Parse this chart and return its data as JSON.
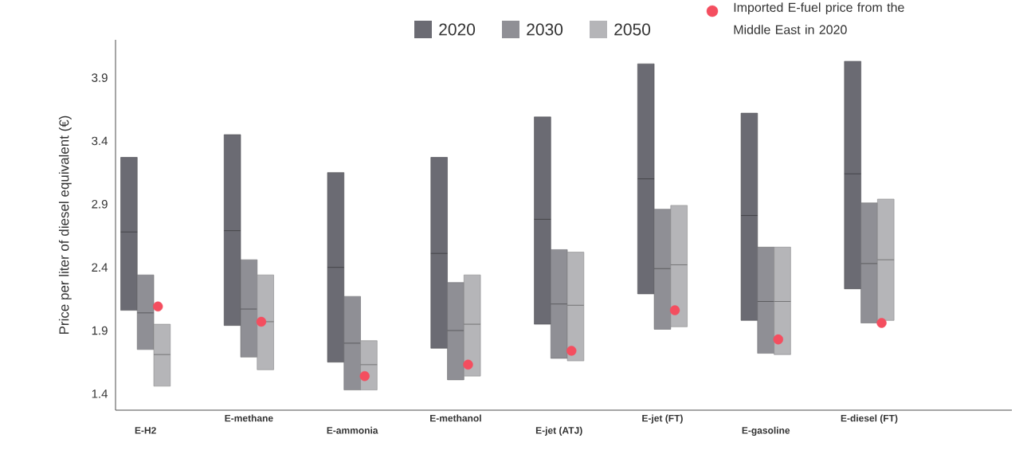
{
  "chart_data": {
    "type": "box",
    "ylabel": "Price per liter of diesel equivalent (€)",
    "categories": [
      "E-H2",
      "E-methane",
      "E-ammonia",
      "E-methanol",
      "E-jet (ATJ)",
      "E-jet (FT)",
      "E-gasoline",
      "E-diesel (FT)"
    ],
    "ylim": [
      1.27,
      4.2
    ],
    "yticks": [
      1.4,
      1.9,
      2.4,
      2.9,
      3.4,
      3.9
    ],
    "legend": "top",
    "series": [
      {
        "name": "2020",
        "color": "#6b6b73",
        "boxes": [
          {
            "low": 2.06,
            "q1": 2.06,
            "median": 2.68,
            "q3": 3.27,
            "high": 3.27
          },
          {
            "low": 1.94,
            "q1": 1.94,
            "median": 2.69,
            "q3": 3.45,
            "high": 3.45
          },
          {
            "low": 1.65,
            "q1": 1.65,
            "median": 2.4,
            "q3": 3.15,
            "high": 3.15
          },
          {
            "low": 1.76,
            "q1": 1.76,
            "median": 2.51,
            "q3": 3.27,
            "high": 3.27
          },
          {
            "low": 1.95,
            "q1": 1.95,
            "median": 2.78,
            "q3": 3.59,
            "high": 3.59
          },
          {
            "low": 2.19,
            "q1": 2.19,
            "median": 3.1,
            "q3": 4.01,
            "high": 4.01
          },
          {
            "low": 1.98,
            "q1": 1.98,
            "median": 2.81,
            "q3": 3.62,
            "high": 3.62
          },
          {
            "low": 2.23,
            "q1": 2.23,
            "median": 3.14,
            "q3": 4.03,
            "high": 4.03
          }
        ]
      },
      {
        "name": "2030",
        "color": "#8f8f95",
        "boxes": [
          {
            "low": 1.75,
            "q1": 1.75,
            "median": 2.04,
            "q3": 2.34,
            "high": 2.34
          },
          {
            "low": 1.69,
            "q1": 1.69,
            "median": 2.07,
            "q3": 2.46,
            "high": 2.46
          },
          {
            "low": 1.43,
            "q1": 1.43,
            "median": 1.8,
            "q3": 2.17,
            "high": 2.17
          },
          {
            "low": 1.51,
            "q1": 1.51,
            "median": 1.9,
            "q3": 2.28,
            "high": 2.28
          },
          {
            "low": 1.68,
            "q1": 1.68,
            "median": 2.11,
            "q3": 2.54,
            "high": 2.54
          },
          {
            "low": 1.91,
            "q1": 1.91,
            "median": 2.39,
            "q3": 2.86,
            "high": 2.86
          },
          {
            "low": 1.72,
            "q1": 1.72,
            "median": 2.13,
            "q3": 2.56,
            "high": 2.56
          },
          {
            "low": 1.96,
            "q1": 1.96,
            "median": 2.43,
            "q3": 2.91,
            "high": 2.91
          }
        ]
      },
      {
        "name": "2050",
        "color": "#b5b5b8",
        "boxes": [
          {
            "low": 1.46,
            "q1": 1.46,
            "median": 1.71,
            "q3": 1.95,
            "high": 1.95
          },
          {
            "low": 1.59,
            "q1": 1.59,
            "median": 1.97,
            "q3": 2.34,
            "high": 2.34
          },
          {
            "low": 1.43,
            "q1": 1.43,
            "median": 1.63,
            "q3": 1.82,
            "high": 1.82
          },
          {
            "low": 1.54,
            "q1": 1.54,
            "median": 1.95,
            "q3": 2.34,
            "high": 2.34
          },
          {
            "low": 1.66,
            "q1": 1.66,
            "median": 2.1,
            "q3": 2.52,
            "high": 2.52
          },
          {
            "low": 1.93,
            "q1": 1.93,
            "median": 2.42,
            "q3": 2.89,
            "high": 2.89
          },
          {
            "low": 1.71,
            "q1": 1.71,
            "median": 2.13,
            "q3": 2.56,
            "high": 2.56
          },
          {
            "low": 1.98,
            "q1": 1.98,
            "median": 2.46,
            "q3": 2.94,
            "high": 2.94
          }
        ]
      },
      {
        "name": "Imported E-fuel price from the Middle East in 2020",
        "type": "scatter",
        "marker": "circle",
        "color": "#f44e5f",
        "x": [
          "E-H2",
          "E-methane",
          "E-ammonia",
          "E-methanol",
          "E-jet (ATJ)",
          "E-jet (FT)",
          "E-gasoline",
          "E-diesel (FT)"
        ],
        "values": [
          2.09,
          1.97,
          1.54,
          1.63,
          1.74,
          2.06,
          1.83,
          1.96
        ]
      }
    ]
  }
}
